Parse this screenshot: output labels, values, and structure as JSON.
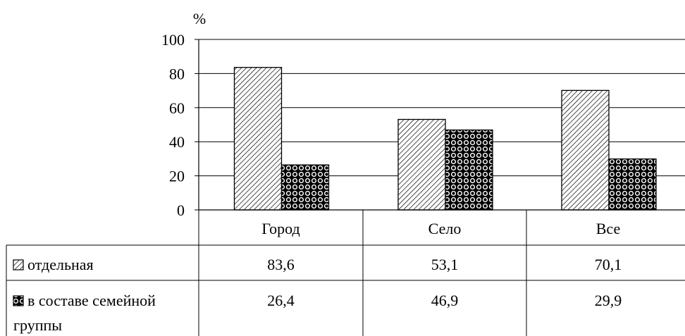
{
  "chart_data": {
    "type": "bar",
    "title": "",
    "ylabel": "%",
    "xlabel": "",
    "ylim": [
      0,
      100
    ],
    "yticks": [
      0,
      20,
      40,
      60,
      80,
      100
    ],
    "grid": true,
    "categories": [
      "Город",
      "Село",
      "Все"
    ],
    "series": [
      {
        "name": "отдельная",
        "values": [
          83.6,
          53.1,
          70.1
        ],
        "display": [
          "83,6",
          "53,1",
          "70,1"
        ],
        "pattern": "diagonal-hatch"
      },
      {
        "name": "в составе семейной группы",
        "values": [
          26.4,
          46.9,
          29.9
        ],
        "display": [
          "26,4",
          "46,9",
          "29,9"
        ],
        "pattern": "dots"
      }
    ],
    "legend": "data-table"
  }
}
